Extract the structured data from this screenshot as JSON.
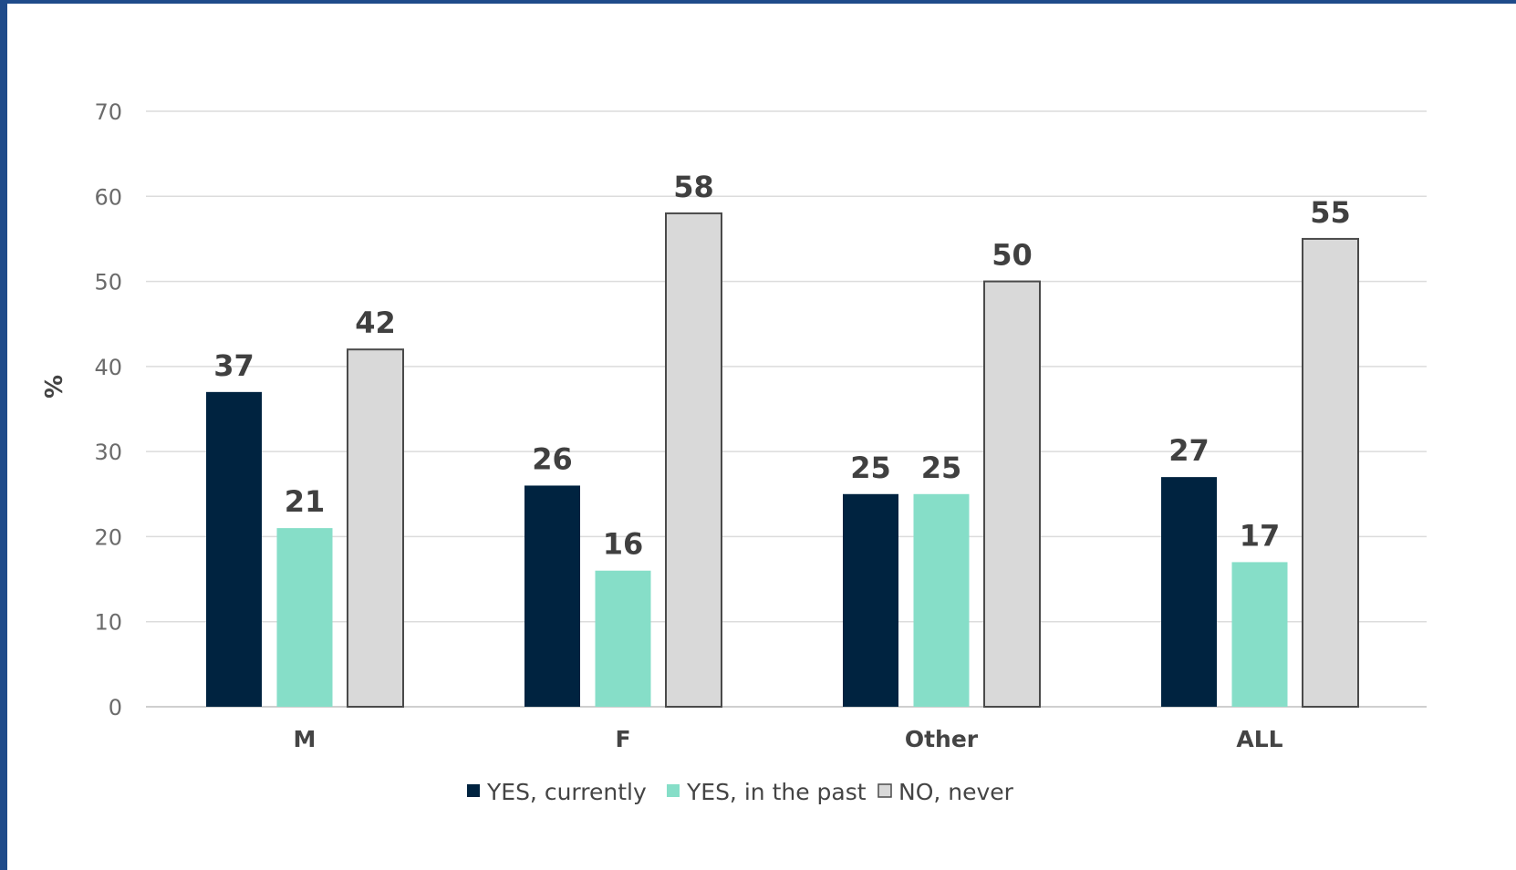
{
  "chart_data": {
    "type": "bar",
    "ylabel": "%",
    "ylim": [
      0,
      70
    ],
    "yticks": [
      0,
      10,
      20,
      30,
      40,
      50,
      60,
      70
    ],
    "grid": true,
    "legend_position": "bottom",
    "categories": [
      "M",
      "F",
      "Other",
      "ALL"
    ],
    "series": [
      {
        "name": "YES, currently",
        "color": "#002340",
        "values": [
          37,
          26,
          25,
          27
        ],
        "labels": [
          "37",
          "26",
          "25",
          "27"
        ]
      },
      {
        "name": "YES, in the past",
        "color": "#86dec8",
        "values": [
          21,
          16,
          25,
          17
        ],
        "labels": [
          "21",
          "16",
          "25",
          "17"
        ]
      },
      {
        "name": "NO, never",
        "color": "#d9d9d9",
        "values": [
          42,
          58,
          50,
          55
        ],
        "labels": [
          "42",
          "58",
          "50",
          "55"
        ]
      }
    ]
  }
}
